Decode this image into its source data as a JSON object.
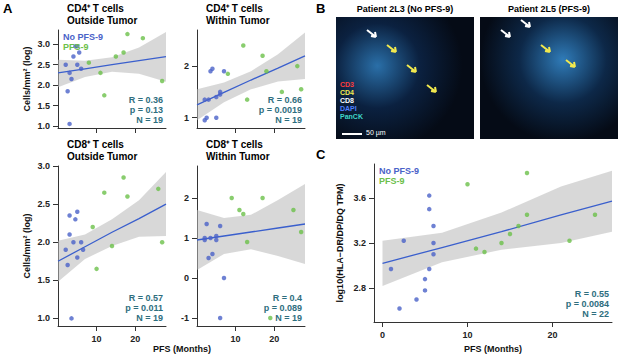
{
  "panel_labels": [
    "A",
    "B",
    "C"
  ],
  "panel_b": {
    "images": [
      {
        "title": "Patient 2L3 (No PFS-9)"
      },
      {
        "title": "Patient 2L5 (PFS-9)"
      }
    ],
    "channels": [
      {
        "name": "CD3",
        "color": "#ff3b3b"
      },
      {
        "name": "CD4",
        "color": "#f2e94e"
      },
      {
        "name": "CD8",
        "color": "#ffffff"
      },
      {
        "name": "DAPI",
        "color": "#4f7fff"
      },
      {
        "name": "PanCK",
        "color": "#3fd6c8"
      }
    ],
    "scale_bar": "50 µm"
  },
  "chart_data": [
    {
      "type": "scatter",
      "title": "CD4⁺ T cells\nOutside Tumor",
      "y_label": "Cells/mm² (log)",
      "xlim": [
        0,
        28
      ],
      "xticks": [
        10,
        20
      ],
      "ylim": [
        0.95,
        3.35
      ],
      "yticks": [
        {
          "value": 1,
          "label": "1.0"
        },
        {
          "value": 1.5,
          "label": "1.5"
        },
        {
          "value": 2,
          "label": "2.0"
        },
        {
          "value": 2.5,
          "label": "2.5"
        },
        {
          "value": 3,
          "label": "3.0"
        }
      ],
      "grid": false,
      "legend": "upper left",
      "tick_labels": "y",
      "series": [
        {
          "name": "No PFS-9",
          "color": "#4a62c8",
          "values": [
            [
              2,
              2.5
            ],
            [
              2.5,
              1.85
            ],
            [
              3,
              2.3
            ],
            [
              3.5,
              2.15
            ],
            [
              4,
              2.7
            ],
            [
              4.5,
              2.95
            ],
            [
              5,
              2.5
            ],
            [
              5.5,
              2.8
            ],
            [
              6,
              2.4
            ],
            [
              5,
              2.95
            ],
            [
              3,
              1.05
            ]
          ]
        },
        {
          "name": "PFS-9",
          "color": "#6cc04a",
          "values": [
            [
              8,
              2.55
            ],
            [
              12,
              1.75
            ],
            [
              11,
              2.3
            ],
            [
              15,
              2.7
            ],
            [
              17,
              2.8
            ],
            [
              18,
              3.25
            ],
            [
              22,
              3.15
            ],
            [
              27,
              2.1
            ]
          ]
        }
      ],
      "fit": {
        "color": "#3a5fcd",
        "x": [
          0,
          7,
          14,
          21,
          28
        ],
        "y": [
          2.3,
          2.4,
          2.5,
          2.6,
          2.7
        ],
        "lower": [
          1.95,
          2.2,
          2.33,
          2.28,
          2.08
        ],
        "upper": [
          2.62,
          2.6,
          2.68,
          2.92,
          3.3
        ]
      },
      "annotation": [
        "R = 0.36",
        "p = 0.13",
        "N = 19"
      ]
    },
    {
      "type": "scatter",
      "title": "CD4⁺ T cells\nWithin Tumor",
      "xlim": [
        0,
        28
      ],
      "xticks": [
        10,
        20
      ],
      "ylim": [
        0.8,
        2.7
      ],
      "yticks": [
        1,
        2
      ],
      "grid": false,
      "tick_labels": "y",
      "series": [
        {
          "name": "No PFS-9",
          "color": "#4a62c8",
          "values": [
            [
              2,
              1.35
            ],
            [
              2.5,
              1.0
            ],
            [
              3,
              1.35
            ],
            [
              3.5,
              1.9
            ],
            [
              4,
              1.95
            ],
            [
              5,
              1.4
            ],
            [
              6,
              1.45
            ],
            [
              6,
              1.5
            ],
            [
              5,
              1.0
            ],
            [
              2,
              0.95
            ],
            [
              7,
              1.9
            ]
          ]
        },
        {
          "name": "PFS-9",
          "color": "#6cc04a",
          "values": [
            [
              8,
              1.85
            ],
            [
              12,
              2.4
            ],
            [
              13,
              1.35
            ],
            [
              17,
              2.2
            ],
            [
              18,
              1.9
            ],
            [
              22,
              1.5
            ],
            [
              26,
              2.0
            ],
            [
              27,
              1.55
            ]
          ]
        }
      ],
      "fit": {
        "color": "#3a5fcd",
        "x": [
          0,
          7,
          14,
          21,
          28
        ],
        "y": [
          1.25,
          1.49,
          1.73,
          1.96,
          2.2
        ],
        "lower": [
          0.95,
          1.3,
          1.55,
          1.7,
          1.75
        ],
        "upper": [
          1.55,
          1.68,
          1.9,
          2.23,
          2.65
        ]
      },
      "annotation": [
        "R = 0.66",
        "p = 0.0019",
        "N = 19"
      ]
    },
    {
      "type": "scatter",
      "title": "CD8⁺ T cells\nOutside Tumor",
      "y_label": "Cells/mm² (log)",
      "x_label": "PFS (Months)",
      "xlim": [
        0,
        28
      ],
      "xticks": [
        10,
        20
      ],
      "ylim": [
        0.9,
        3.0
      ],
      "yticks": [
        {
          "value": 1,
          "label": "1.0"
        },
        {
          "value": 1.5,
          "label": "1.5"
        },
        {
          "value": 2,
          "label": "2.0"
        },
        {
          "value": 2.5,
          "label": "2.5"
        },
        {
          "value": 3,
          "label": "3.0"
        }
      ],
      "grid": false,
      "series": [
        {
          "name": "No PFS-9",
          "color": "#4a62c8",
          "values": [
            [
              2,
              1.9
            ],
            [
              2.5,
              1.7
            ],
            [
              3,
              2.1
            ],
            [
              3,
              2.35
            ],
            [
              4,
              2.0
            ],
            [
              4.5,
              2.3
            ],
            [
              5,
              2.4
            ],
            [
              5,
              1.8
            ],
            [
              6,
              2.0
            ],
            [
              6.5,
              1.9
            ],
            [
              3.5,
              1.0
            ]
          ]
        },
        {
          "name": "PFS-9",
          "color": "#6cc04a",
          "values": [
            [
              9,
              2.2
            ],
            [
              10,
              1.65
            ],
            [
              12,
              2.65
            ],
            [
              14,
              1.95
            ],
            [
              17,
              2.85
            ],
            [
              18,
              2.6
            ],
            [
              26,
              2.7
            ],
            [
              27,
              2.0
            ]
          ]
        }
      ],
      "fit": {
        "color": "#3a5fcd",
        "x": [
          0,
          7,
          14,
          21,
          28
        ],
        "y": [
          1.75,
          1.94,
          2.13,
          2.31,
          2.5
        ],
        "lower": [
          1.48,
          1.78,
          1.95,
          2.07,
          2.08
        ],
        "upper": [
          2.02,
          2.1,
          2.3,
          2.55,
          2.92
        ]
      },
      "annotation": [
        "R = 0.57",
        "p = 0.011",
        "N = 19"
      ]
    },
    {
      "type": "scatter",
      "title": "CD8⁺ T cells\nWithin Tumor",
      "xlim": [
        0,
        28
      ],
      "xticks": [
        10,
        20
      ],
      "ylim": [
        -1.2,
        2.8
      ],
      "yticks": [
        -1,
        0,
        1,
        2
      ],
      "grid": false,
      "series": [
        {
          "name": "No PFS-9",
          "color": "#4a62c8",
          "values": [
            [
              2,
              1.0
            ],
            [
              2.5,
              1.35
            ],
            [
              3,
              0.5
            ],
            [
              3.5,
              1.0
            ],
            [
              4,
              0.6
            ],
            [
              5,
              1.05
            ],
            [
              5,
              0.95
            ],
            [
              6,
              1.3
            ],
            [
              7,
              0.0
            ],
            [
              6,
              -1.0
            ],
            [
              2,
              0.95
            ]
          ]
        },
        {
          "name": "PFS-9",
          "color": "#6cc04a",
          "values": [
            [
              9,
              2.0
            ],
            [
              11,
              1.7
            ],
            [
              12,
              1.6
            ],
            [
              13,
              0.9
            ],
            [
              17,
              2.0
            ],
            [
              19,
              -1.0
            ],
            [
              25,
              1.7
            ],
            [
              27,
              1.15
            ]
          ]
        }
      ],
      "fit": {
        "color": "#3a5fcd",
        "x": [
          0,
          7,
          14,
          21,
          28
        ],
        "y": [
          0.95,
          1.05,
          1.15,
          1.25,
          1.35
        ],
        "lower": [
          0.2,
          0.6,
          0.72,
          0.55,
          0.35
        ],
        "upper": [
          1.7,
          1.5,
          1.58,
          1.95,
          2.35
        ]
      },
      "annotation": [
        "R = 0.4",
        "p = 0.089",
        "N = 19"
      ]
    },
    {
      "type": "scatter",
      "y_label": "log10(HLA−DR/DP/DQ TPM)",
      "x_label": "PFS (Months)",
      "xlim": [
        -1,
        27
      ],
      "xticks": [
        0,
        10,
        20
      ],
      "ylim": [
        2.5,
        3.9
      ],
      "yticks": [
        2.8,
        3.2,
        3.6
      ],
      "grid": false,
      "legend": "upper left",
      "series": [
        {
          "name": "No PFS-9",
          "color": "#4a62c8",
          "values": [
            [
              1,
              2.97
            ],
            [
              2,
              2.62
            ],
            [
              2.5,
              3.22
            ],
            [
              4,
              2.7
            ],
            [
              5,
              2.88
            ],
            [
              5.5,
              3.62
            ],
            [
              5.5,
              3.5
            ],
            [
              6,
              3.35
            ],
            [
              6,
              3.2
            ],
            [
              5.5,
              2.97
            ],
            [
              6,
              3.1
            ],
            [
              5,
              2.78
            ]
          ]
        },
        {
          "name": "PFS-9",
          "color": "#6cc04a",
          "values": [
            [
              10,
              3.72
            ],
            [
              11,
              3.15
            ],
            [
              12,
              3.12
            ],
            [
              14,
              3.2
            ],
            [
              15,
              3.28
            ],
            [
              16,
              3.35
            ],
            [
              17,
              3.82
            ],
            [
              17,
              3.45
            ],
            [
              22,
              3.22
            ],
            [
              25,
              3.45
            ]
          ]
        }
      ],
      "fit": {
        "color": "#3a5fcd",
        "x": [
          0,
          7,
          14,
          21,
          27
        ],
        "y": [
          3.02,
          3.16,
          3.3,
          3.45,
          3.57
        ],
        "lower": [
          2.82,
          3.03,
          3.14,
          3.2,
          3.3
        ],
        "upper": [
          3.22,
          3.29,
          3.47,
          3.7,
          3.84
        ]
      },
      "annotation": [
        "R = 0.55",
        "p = 0.0084",
        "N = 22"
      ]
    }
  ]
}
